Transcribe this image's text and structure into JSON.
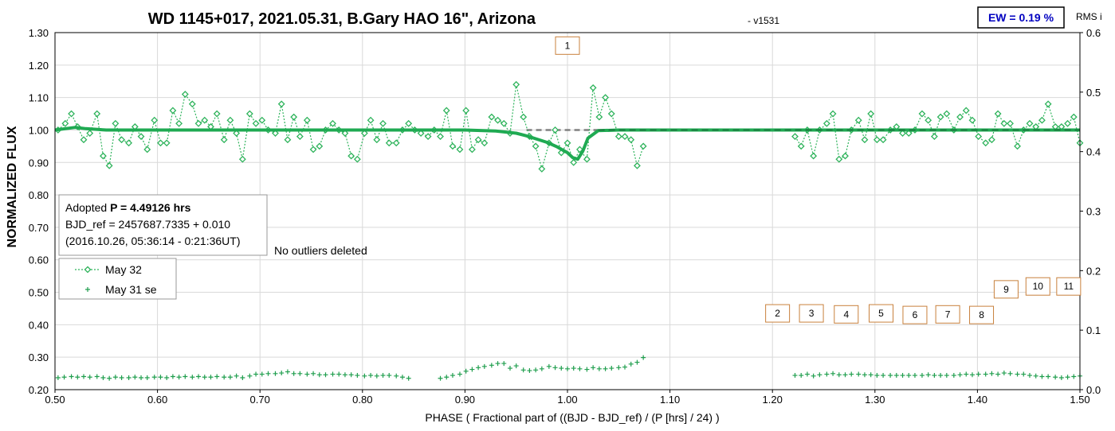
{
  "chart_data": {
    "type": "scatter",
    "title": "WD 1145+017, 2021.05.31, B.Gary HAO 16\", Arizona",
    "version": "- v1531",
    "ew_label": "EW = 0.19 %",
    "right_axis_label": "RMS i",
    "xlabel": "PHASE ( Fractional part of ((BJD - BJD_ref) / (P [hrs] / 24) )",
    "ylabel": "NORMALIZED FLUX",
    "xlim": [
      0.5,
      1.5
    ],
    "ylim": [
      0.2,
      1.3
    ],
    "y2lim": [
      0.0,
      0.6
    ],
    "x_ticks": [
      "0.50",
      "0.60",
      "0.70",
      "0.80",
      "0.90",
      "1.00",
      "1.10",
      "1.20",
      "1.30",
      "1.40",
      "1.50"
    ],
    "y_ticks": [
      "0.20",
      "0.30",
      "0.40",
      "0.50",
      "0.60",
      "0.70",
      "0.80",
      "0.90",
      "1.00",
      "1.10",
      "1.20",
      "1.30"
    ],
    "y2_ticks": [
      "0.0",
      "0.1",
      "0.2",
      "0.3",
      "0.4",
      "0.5",
      "0.6"
    ],
    "grid": true,
    "info_box": {
      "line1_prefix": "Adopted ",
      "line1_bold": "P = 4.49126 hrs",
      "line2": "BJD_ref = 2457687.7335 + 0.010",
      "line3": "(2016.10.26, 05:36:14 - 0:21:36UT)"
    },
    "note": "No outliers deleted",
    "legend": [
      {
        "label": "May 32",
        "style": "dotted-diamond"
      },
      {
        "label": "May 31 se",
        "style": "plus"
      }
    ],
    "annotations": [
      {
        "label": "1",
        "x": 1.0,
        "y": 1.26
      },
      {
        "label": "2",
        "x": 1.205,
        "y": 0.435
      },
      {
        "label": "3",
        "x": 1.238,
        "y": 0.435
      },
      {
        "label": "4",
        "x": 1.272,
        "y": 0.432
      },
      {
        "label": "5",
        "x": 1.306,
        "y": 0.435
      },
      {
        "label": "6",
        "x": 1.339,
        "y": 0.43
      },
      {
        "label": "7",
        "x": 1.371,
        "y": 0.432
      },
      {
        "label": "8",
        "x": 1.404,
        "y": 0.43
      },
      {
        "label": "9",
        "x": 1.428,
        "y": 0.509
      },
      {
        "label": "10",
        "x": 1.459,
        "y": 0.518
      },
      {
        "label": "11",
        "x": 1.489,
        "y": 0.518
      }
    ],
    "colors": {
      "flux": "#2eb35b",
      "model": "#1faa52",
      "dashed_model": "#808080",
      "dashed_model2": "#1a6e3a",
      "rms": "#1f9e4d",
      "annotation_border": "#c8803c",
      "ew": "#0000c0"
    },
    "series": [
      {
        "name": "May 32",
        "x": [
          0.503,
          0.51,
          0.516,
          0.522,
          0.528,
          0.534,
          0.541,
          0.547,
          0.553,
          0.559,
          0.565,
          0.572,
          0.578,
          0.584,
          0.59,
          0.597,
          0.603,
          0.609,
          0.615,
          0.621,
          0.627,
          0.634,
          0.64,
          0.646,
          0.652,
          0.658,
          0.665,
          0.671,
          0.677,
          0.683,
          0.69,
          0.696,
          0.702,
          0.708,
          0.715,
          0.721,
          0.727,
          0.733,
          0.739,
          0.746,
          0.752,
          0.758,
          0.764,
          0.771,
          0.777,
          0.783,
          0.789,
          0.795,
          0.802,
          0.808,
          0.814,
          0.82,
          0.826,
          0.833,
          0.839,
          0.845,
          0.851,
          0.857,
          0.864,
          0.87,
          0.876,
          0.882,
          0.888,
          0.895,
          0.901,
          0.907,
          0.913,
          0.919,
          0.926,
          0.932,
          0.938,
          0.944,
          0.95,
          0.957,
          0.963,
          0.969,
          0.975,
          0.982,
          0.988,
          0.994,
          1.0,
          1.006,
          1.012,
          1.019,
          1.025,
          1.031,
          1.037,
          1.043,
          1.05,
          1.056,
          1.062,
          1.068,
          1.074,
          1.222,
          1.228,
          1.234,
          1.24,
          1.246,
          1.253,
          1.259,
          1.265,
          1.271,
          1.277,
          1.284,
          1.29,
          1.296,
          1.302,
          1.308,
          1.315,
          1.321,
          1.327,
          1.333,
          1.339,
          1.346,
          1.352,
          1.358,
          1.364,
          1.37,
          1.377,
          1.383,
          1.389,
          1.395,
          1.401,
          1.408,
          1.414,
          1.42,
          1.426,
          1.432,
          1.439,
          1.445,
          1.451,
          1.457,
          1.463,
          1.469,
          1.476,
          1.482,
          1.488,
          1.494,
          1.5
        ],
        "y": [
          1.0,
          1.02,
          1.05,
          1.01,
          0.97,
          0.99,
          1.05,
          0.92,
          0.89,
          1.02,
          0.97,
          0.96,
          1.01,
          0.98,
          0.94,
          1.03,
          0.96,
          0.96,
          1.06,
          1.02,
          1.11,
          1.08,
          1.02,
          1.03,
          1.01,
          1.05,
          0.97,
          1.03,
          0.99,
          0.91,
          1.05,
          1.02,
          1.03,
          1.0,
          0.99,
          1.08,
          0.97,
          1.04,
          0.98,
          1.03,
          0.94,
          0.95,
          1.0,
          1.02,
          1.0,
          0.99,
          0.92,
          0.91,
          0.99,
          1.03,
          0.97,
          1.02,
          0.96,
          0.96,
          1.0,
          1.02,
          1.0,
          0.99,
          0.98,
          1.0,
          0.98,
          1.06,
          0.95,
          0.94,
          1.06,
          0.94,
          0.97,
          0.96,
          1.04,
          1.03,
          1.02,
          0.99,
          1.14,
          1.04,
          0.98,
          0.95,
          0.88,
          0.96,
          1.0,
          0.93,
          0.96,
          0.9,
          0.94,
          0.91,
          1.13,
          1.04,
          1.1,
          1.05,
          0.98,
          0.98,
          0.97,
          0.89,
          0.95,
          0.98,
          0.95,
          1.0,
          0.92,
          1.0,
          1.02,
          1.05,
          0.91,
          0.92,
          1.0,
          1.03,
          0.97,
          1.05,
          0.97,
          0.97,
          1.0,
          1.01,
          0.99,
          0.99,
          1.0,
          1.05,
          1.03,
          0.98,
          1.04,
          1.05,
          1.0,
          1.04,
          1.06,
          1.03,
          0.98,
          0.96,
          0.97,
          1.05,
          1.02,
          1.02,
          0.95,
          1.0,
          1.02,
          1.01,
          1.03,
          1.08,
          1.01,
          1.01,
          1.02,
          1.04,
          0.96
        ]
      },
      {
        "name": "May 31 se",
        "x": [
          0.503,
          0.509,
          0.516,
          0.522,
          0.528,
          0.534,
          0.541,
          0.547,
          0.553,
          0.559,
          0.565,
          0.572,
          0.578,
          0.584,
          0.59,
          0.597,
          0.603,
          0.609,
          0.615,
          0.621,
          0.627,
          0.634,
          0.64,
          0.646,
          0.652,
          0.658,
          0.665,
          0.671,
          0.677,
          0.683,
          0.69,
          0.696,
          0.702,
          0.708,
          0.715,
          0.721,
          0.727,
          0.733,
          0.739,
          0.746,
          0.752,
          0.758,
          0.764,
          0.771,
          0.777,
          0.783,
          0.789,
          0.795,
          0.802,
          0.808,
          0.814,
          0.82,
          0.826,
          0.833,
          0.839,
          0.845,
          0.876,
          0.882,
          0.888,
          0.895,
          0.901,
          0.907,
          0.913,
          0.919,
          0.926,
          0.932,
          0.938,
          0.944,
          0.95,
          0.957,
          0.963,
          0.969,
          0.975,
          0.982,
          0.988,
          0.994,
          1.0,
          1.006,
          1.012,
          1.019,
          1.025,
          1.031,
          1.037,
          1.043,
          1.05,
          1.056,
          1.062,
          1.068,
          1.074,
          1.222,
          1.228,
          1.234,
          1.24,
          1.246,
          1.253,
          1.259,
          1.265,
          1.271,
          1.277,
          1.284,
          1.29,
          1.296,
          1.302,
          1.308,
          1.315,
          1.321,
          1.327,
          1.333,
          1.339,
          1.346,
          1.352,
          1.358,
          1.364,
          1.37,
          1.377,
          1.383,
          1.389,
          1.395,
          1.401,
          1.408,
          1.414,
          1.42,
          1.426,
          1.432,
          1.439,
          1.445,
          1.451,
          1.457,
          1.463,
          1.469,
          1.476,
          1.482,
          1.488,
          1.494,
          1.5
        ],
        "y": [
          0.02,
          0.021,
          0.022,
          0.021,
          0.022,
          0.021,
          0.022,
          0.02,
          0.019,
          0.021,
          0.02,
          0.02,
          0.021,
          0.02,
          0.02,
          0.021,
          0.021,
          0.02,
          0.022,
          0.021,
          0.022,
          0.021,
          0.022,
          0.021,
          0.021,
          0.022,
          0.021,
          0.021,
          0.023,
          0.02,
          0.023,
          0.026,
          0.026,
          0.027,
          0.027,
          0.028,
          0.03,
          0.027,
          0.027,
          0.026,
          0.027,
          0.025,
          0.025,
          0.026,
          0.026,
          0.025,
          0.025,
          0.024,
          0.023,
          0.024,
          0.023,
          0.024,
          0.024,
          0.023,
          0.021,
          0.019,
          0.019,
          0.021,
          0.024,
          0.026,
          0.031,
          0.034,
          0.037,
          0.039,
          0.041,
          0.044,
          0.044,
          0.036,
          0.04,
          0.033,
          0.032,
          0.033,
          0.035,
          0.039,
          0.037,
          0.036,
          0.035,
          0.036,
          0.035,
          0.034,
          0.037,
          0.035,
          0.035,
          0.036,
          0.037,
          0.038,
          0.043,
          0.046,
          0.054,
          0.024,
          0.024,
          0.026,
          0.023,
          0.025,
          0.026,
          0.027,
          0.025,
          0.025,
          0.026,
          0.026,
          0.025,
          0.025,
          0.024,
          0.024,
          0.024,
          0.024,
          0.024,
          0.024,
          0.024,
          0.024,
          0.025,
          0.024,
          0.024,
          0.024,
          0.024,
          0.025,
          0.026,
          0.025,
          0.026,
          0.026,
          0.027,
          0.026,
          0.028,
          0.027,
          0.026,
          0.026,
          0.024,
          0.023,
          0.022,
          0.022,
          0.021,
          0.02,
          0.021,
          0.022,
          0.023
        ]
      }
    ],
    "model": {
      "x": [
        0.5,
        0.51,
        0.52,
        0.53,
        0.55,
        0.6,
        0.7,
        0.8,
        0.9,
        0.93,
        0.95,
        0.96,
        0.97,
        0.98,
        0.99,
        1.0,
        1.005,
        1.01,
        1.015,
        1.02,
        1.03,
        1.05,
        1.1,
        1.2,
        1.3,
        1.4,
        1.5
      ],
      "y": [
        1.0,
        1.004,
        1.008,
        1.004,
        1.0,
        1.0,
        1.0,
        1.0,
        1.0,
        0.997,
        0.99,
        0.982,
        0.972,
        0.962,
        0.948,
        0.93,
        0.915,
        0.91,
        0.935,
        0.975,
        0.998,
        1.0,
        1.0,
        1.0,
        1.0,
        1.0,
        1.0
      ]
    },
    "dashed_model_segment": {
      "x": [
        0.96,
        1.03
      ],
      "y": [
        1.0,
        1.0
      ]
    }
  }
}
